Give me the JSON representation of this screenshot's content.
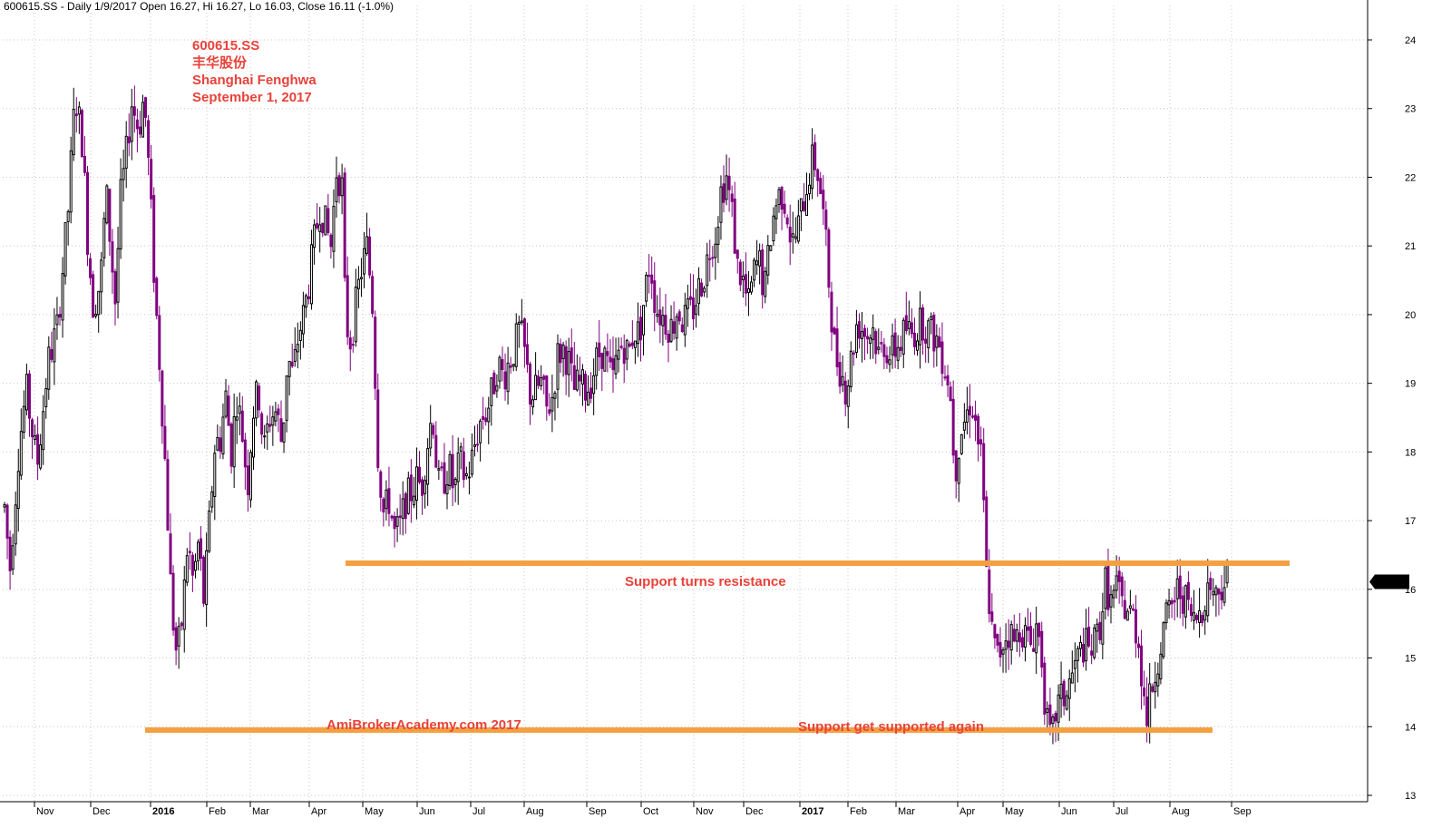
{
  "header": {
    "text": "600615.SS - Daily 1/9/2017 Open 16.27, Hi 16.27, Lo 16.03, Close 16.11 (-1.0%)"
  },
  "title_block": {
    "line1": "600615.SS",
    "line2": "丰华股份",
    "line3": "Shanghai Fenghwa",
    "line4": "September 1, 2017"
  },
  "annotations": {
    "resistance": "Support turns resistance",
    "watermark": "AmiBrokerAcademy.com 2017",
    "support": "Support get supported again"
  },
  "price_badge": "16.11",
  "colors": {
    "up_candle": "#000000",
    "down_candle": "#800080",
    "level_line": "#f4a040",
    "annotation": "#e8423a",
    "badge_bg": "#000000",
    "badge_fg": "#ffffff"
  },
  "chart_data": {
    "type": "candlestick",
    "ylim": [
      13,
      24.5
    ],
    "y_ticks": [
      "13",
      "14",
      "15",
      "16",
      "17",
      "18",
      "19",
      "20",
      "21",
      "22",
      "23",
      "24"
    ],
    "x_ticks": [
      {
        "label": "Nov",
        "bold": false
      },
      {
        "label": "Dec",
        "bold": false
      },
      {
        "label": "2016",
        "bold": true
      },
      {
        "label": "Feb",
        "bold": false
      },
      {
        "label": "Mar",
        "bold": false
      },
      {
        "label": "Apr",
        "bold": false
      },
      {
        "label": "May",
        "bold": false
      },
      {
        "label": "Jun",
        "bold": false
      },
      {
        "label": "Jul",
        "bold": false
      },
      {
        "label": "Aug",
        "bold": false
      },
      {
        "label": "Sep",
        "bold": false
      },
      {
        "label": "Oct",
        "bold": false
      },
      {
        "label": "Nov",
        "bold": false
      },
      {
        "label": "Dec",
        "bold": false
      },
      {
        "label": "2017",
        "bold": true
      },
      {
        "label": "Feb",
        "bold": false
      },
      {
        "label": "Mar",
        "bold": false
      },
      {
        "label": "Apr",
        "bold": false
      },
      {
        "label": "May",
        "bold": false
      },
      {
        "label": "Jun",
        "bold": false
      },
      {
        "label": "Jul",
        "bold": false
      },
      {
        "label": "Aug",
        "bold": false
      },
      {
        "label": "Sep",
        "bold": false
      }
    ],
    "price_path": [
      [
        0,
        17.2
      ],
      [
        6,
        16.3
      ],
      [
        16,
        18.1
      ],
      [
        24,
        18.9
      ],
      [
        36,
        17.8
      ],
      [
        48,
        19.3
      ],
      [
        58,
        19.8
      ],
      [
        70,
        21.5
      ],
      [
        78,
        23.2
      ],
      [
        86,
        22.5
      ],
      [
        92,
        21.0
      ],
      [
        98,
        20.1
      ],
      [
        106,
        20.5
      ],
      [
        112,
        21.8
      ],
      [
        122,
        20.2
      ],
      [
        128,
        21.7
      ],
      [
        134,
        22.3
      ],
      [
        140,
        23.1
      ],
      [
        148,
        22.7
      ],
      [
        154,
        23.2
      ],
      [
        160,
        21.9
      ],
      [
        166,
        20.3
      ],
      [
        172,
        19.1
      ],
      [
        178,
        17.6
      ],
      [
        184,
        15.8
      ],
      [
        190,
        15.0
      ],
      [
        196,
        15.6
      ],
      [
        202,
        16.7
      ],
      [
        208,
        16.1
      ],
      [
        214,
        16.7
      ],
      [
        220,
        15.8
      ],
      [
        226,
        17.0
      ],
      [
        232,
        18.1
      ],
      [
        238,
        18.2
      ],
      [
        244,
        18.8
      ],
      [
        250,
        18.0
      ],
      [
        256,
        18.8
      ],
      [
        262,
        18.3
      ],
      [
        268,
        17.5
      ],
      [
        274,
        18.6
      ],
      [
        280,
        18.9
      ],
      [
        286,
        18.0
      ],
      [
        292,
        18.5
      ],
      [
        300,
        18.6
      ],
      [
        306,
        18.1
      ],
      [
        312,
        19.4
      ],
      [
        318,
        19.1
      ],
      [
        324,
        19.7
      ],
      [
        330,
        20.0
      ],
      [
        336,
        20.5
      ],
      [
        342,
        21.1
      ],
      [
        348,
        21.6
      ],
      [
        354,
        21.3
      ],
      [
        360,
        21.0
      ],
      [
        366,
        22.1
      ],
      [
        372,
        21.9
      ],
      [
        376,
        19.9
      ],
      [
        382,
        19.6
      ],
      [
        388,
        20.2
      ],
      [
        394,
        20.7
      ],
      [
        400,
        21.0
      ],
      [
        406,
        20.1
      ],
      [
        412,
        17.9
      ],
      [
        418,
        17.1
      ],
      [
        424,
        17.3
      ],
      [
        430,
        16.8
      ],
      [
        436,
        16.9
      ],
      [
        442,
        17.3
      ],
      [
        448,
        17.4
      ],
      [
        454,
        17.6
      ],
      [
        460,
        17.5
      ],
      [
        466,
        18.1
      ],
      [
        472,
        18.6
      ],
      [
        478,
        17.5
      ],
      [
        484,
        17.6
      ],
      [
        490,
        17.8
      ],
      [
        496,
        17.4
      ],
      [
        502,
        17.9
      ],
      [
        508,
        17.6
      ],
      [
        514,
        17.8
      ],
      [
        520,
        18.2
      ],
      [
        526,
        18.5
      ],
      [
        532,
        18.6
      ],
      [
        538,
        18.9
      ],
      [
        544,
        19.3
      ],
      [
        550,
        19.1
      ],
      [
        556,
        19.3
      ],
      [
        562,
        19.5
      ],
      [
        568,
        19.8
      ],
      [
        574,
        19.4
      ],
      [
        580,
        18.8
      ],
      [
        586,
        18.9
      ],
      [
        592,
        19.0
      ],
      [
        598,
        18.6
      ],
      [
        604,
        18.8
      ],
      [
        610,
        19.4
      ],
      [
        616,
        19.5
      ],
      [
        622,
        19.3
      ],
      [
        628,
        18.9
      ],
      [
        634,
        19.0
      ],
      [
        640,
        18.9
      ],
      [
        646,
        19.0
      ],
      [
        652,
        19.3
      ],
      [
        658,
        19.5
      ],
      [
        664,
        19.3
      ],
      [
        670,
        19.0
      ],
      [
        676,
        19.4
      ],
      [
        682,
        19.6
      ],
      [
        688,
        19.4
      ],
      [
        694,
        19.8
      ],
      [
        700,
        19.7
      ],
      [
        706,
        20.3
      ],
      [
        712,
        20.8
      ],
      [
        718,
        20.1
      ],
      [
        724,
        20.0
      ],
      [
        730,
        19.9
      ],
      [
        736,
        19.8
      ],
      [
        742,
        20.1
      ],
      [
        748,
        19.9
      ],
      [
        754,
        20.0
      ],
      [
        760,
        20.1
      ],
      [
        766,
        20.4
      ],
      [
        772,
        20.6
      ],
      [
        778,
        21.0
      ],
      [
        784,
        21.2
      ],
      [
        790,
        21.8
      ],
      [
        796,
        22.0
      ],
      [
        802,
        21.5
      ],
      [
        808,
        20.7
      ],
      [
        814,
        20.5
      ],
      [
        820,
        20.1
      ],
      [
        826,
        20.6
      ],
      [
        832,
        20.8
      ],
      [
        838,
        20.3
      ],
      [
        844,
        21.1
      ],
      [
        850,
        21.6
      ],
      [
        856,
        21.8
      ],
      [
        862,
        21.6
      ],
      [
        868,
        21.0
      ],
      [
        874,
        21.2
      ],
      [
        880,
        21.6
      ],
      [
        886,
        22.0
      ],
      [
        892,
        22.3
      ],
      [
        898,
        22.0
      ],
      [
        904,
        21.3
      ],
      [
        910,
        20.3
      ],
      [
        916,
        19.4
      ],
      [
        922,
        19.2
      ],
      [
        928,
        18.9
      ],
      [
        934,
        19.4
      ],
      [
        940,
        19.9
      ],
      [
        946,
        19.8
      ],
      [
        952,
        19.7
      ],
      [
        958,
        19.8
      ],
      [
        964,
        19.4
      ],
      [
        970,
        19.6
      ],
      [
        976,
        19.4
      ],
      [
        982,
        19.5
      ],
      [
        988,
        19.6
      ],
      [
        994,
        19.8
      ],
      [
        1000,
        19.7
      ],
      [
        1006,
        19.8
      ],
      [
        1012,
        19.9
      ],
      [
        1018,
        19.8
      ],
      [
        1024,
        19.7
      ],
      [
        1030,
        19.6
      ],
      [
        1036,
        19.3
      ],
      [
        1042,
        19.0
      ],
      [
        1048,
        17.7
      ],
      [
        1054,
        18.3
      ],
      [
        1060,
        18.5
      ],
      [
        1066,
        18.8
      ],
      [
        1072,
        18.3
      ],
      [
        1078,
        17.8
      ],
      [
        1082,
        16.3
      ],
      [
        1086,
        15.8
      ],
      [
        1090,
        15.2
      ],
      [
        1096,
        15.0
      ],
      [
        1102,
        15.3
      ],
      [
        1108,
        15.4
      ],
      [
        1114,
        15.2
      ],
      [
        1120,
        15.5
      ],
      [
        1126,
        15.3
      ],
      [
        1132,
        15.2
      ],
      [
        1138,
        15.5
      ],
      [
        1144,
        15.0
      ],
      [
        1148,
        14.2
      ],
      [
        1152,
        13.8
      ],
      [
        1156,
        13.9
      ],
      [
        1160,
        14.3
      ],
      [
        1166,
        14.4
      ],
      [
        1172,
        14.5
      ],
      [
        1178,
        14.8
      ],
      [
        1184,
        15.0
      ],
      [
        1190,
        15.2
      ],
      [
        1196,
        15.1
      ],
      [
        1202,
        15.2
      ],
      [
        1208,
        15.5
      ],
      [
        1214,
        16.1
      ],
      [
        1220,
        15.8
      ],
      [
        1226,
        16.0
      ],
      [
        1232,
        15.8
      ],
      [
        1238,
        15.7
      ],
      [
        1244,
        15.6
      ],
      [
        1250,
        15.3
      ],
      [
        1256,
        14.5
      ],
      [
        1260,
        14.1
      ],
      [
        1264,
        14.5
      ],
      [
        1270,
        14.9
      ],
      [
        1276,
        15.3
      ],
      [
        1282,
        15.6
      ],
      [
        1288,
        15.8
      ],
      [
        1294,
        16.0
      ],
      [
        1300,
        15.9
      ],
      [
        1306,
        15.7
      ],
      [
        1312,
        15.5
      ],
      [
        1318,
        15.7
      ],
      [
        1324,
        15.9
      ],
      [
        1330,
        16.1
      ],
      [
        1336,
        15.9
      ],
      [
        1342,
        16.1
      ],
      [
        1348,
        16.2
      ],
      [
        1352,
        16.4
      ],
      [
        1356,
        16.1
      ]
    ],
    "levels": [
      {
        "name": "resistance",
        "value": 16.38
      },
      {
        "name": "support",
        "value": 13.95
      }
    ]
  }
}
